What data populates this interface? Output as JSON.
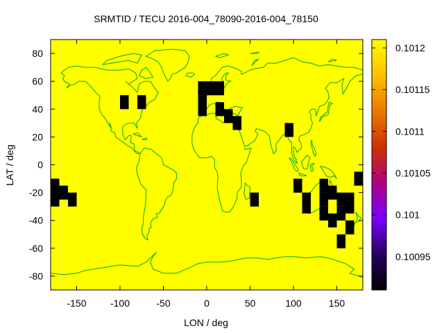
{
  "chart_data": {
    "type": "heatmap",
    "title": "SRMTID / TECU 2016-004_78090-2016-004_78150",
    "xlabel": "LON / deg",
    "ylabel": "LAT / deg",
    "xlim": [
      -180,
      180
    ],
    "ylim": [
      -90,
      90
    ],
    "x_ticks": [
      -150,
      -100,
      -50,
      0,
      50,
      100,
      150
    ],
    "y_ticks": [
      80,
      60,
      40,
      20,
      0,
      -20,
      -40,
      -60,
      -80
    ],
    "cell_size_deg": 10,
    "background_value": 0.10121,
    "colorbar": {
      "min": 0.10091,
      "max": 0.10121,
      "ticks": [
        "0.1012",
        "0.10115",
        "0.1011",
        "0.10105",
        "0.101",
        "0.10095"
      ],
      "tick_values": [
        0.1012,
        0.10115,
        0.1011,
        0.10105,
        0.101,
        0.10095
      ],
      "palette": [
        "#000000",
        "#2a0060",
        "#7a00ff",
        "#b00080",
        "#cc3300",
        "#e87a00",
        "#ffc000",
        "#ffff00"
      ]
    },
    "low_value_cells": [
      {
        "lon": -175,
        "lat": -15
      },
      {
        "lon": -165,
        "lat": -20
      },
      {
        "lon": -175,
        "lat": -25
      },
      {
        "lon": -155,
        "lat": -25
      },
      {
        "lon": -95,
        "lat": 45
      },
      {
        "lon": -75,
        "lat": 45
      },
      {
        "lon": -5,
        "lat": 55
      },
      {
        "lon": 5,
        "lat": 55
      },
      {
        "lon": 15,
        "lat": 55
      },
      {
        "lon": -5,
        "lat": 45
      },
      {
        "lon": -5,
        "lat": 40
      },
      {
        "lon": 15,
        "lat": 40
      },
      {
        "lon": 25,
        "lat": 35
      },
      {
        "lon": 35,
        "lat": 30
      },
      {
        "lon": 95,
        "lat": 25
      },
      {
        "lon": 55,
        "lat": -25
      },
      {
        "lon": 105,
        "lat": -15
      },
      {
        "lon": 115,
        "lat": -25
      },
      {
        "lon": 115,
        "lat": -30
      },
      {
        "lon": 135,
        "lat": -15
      },
      {
        "lon": 135,
        "lat": -25
      },
      {
        "lon": 145,
        "lat": -20
      },
      {
        "lon": 135,
        "lat": -35
      },
      {
        "lon": 145,
        "lat": -40
      },
      {
        "lon": 155,
        "lat": -35
      },
      {
        "lon": 155,
        "lat": -25
      },
      {
        "lon": 165,
        "lat": -25
      },
      {
        "lon": 165,
        "lat": -30
      },
      {
        "lon": 175,
        "lat": -10
      },
      {
        "lon": 165,
        "lat": -45
      },
      {
        "lon": 155,
        "lat": -55
      }
    ],
    "coastline_color": "#00aa00",
    "grid": false
  }
}
